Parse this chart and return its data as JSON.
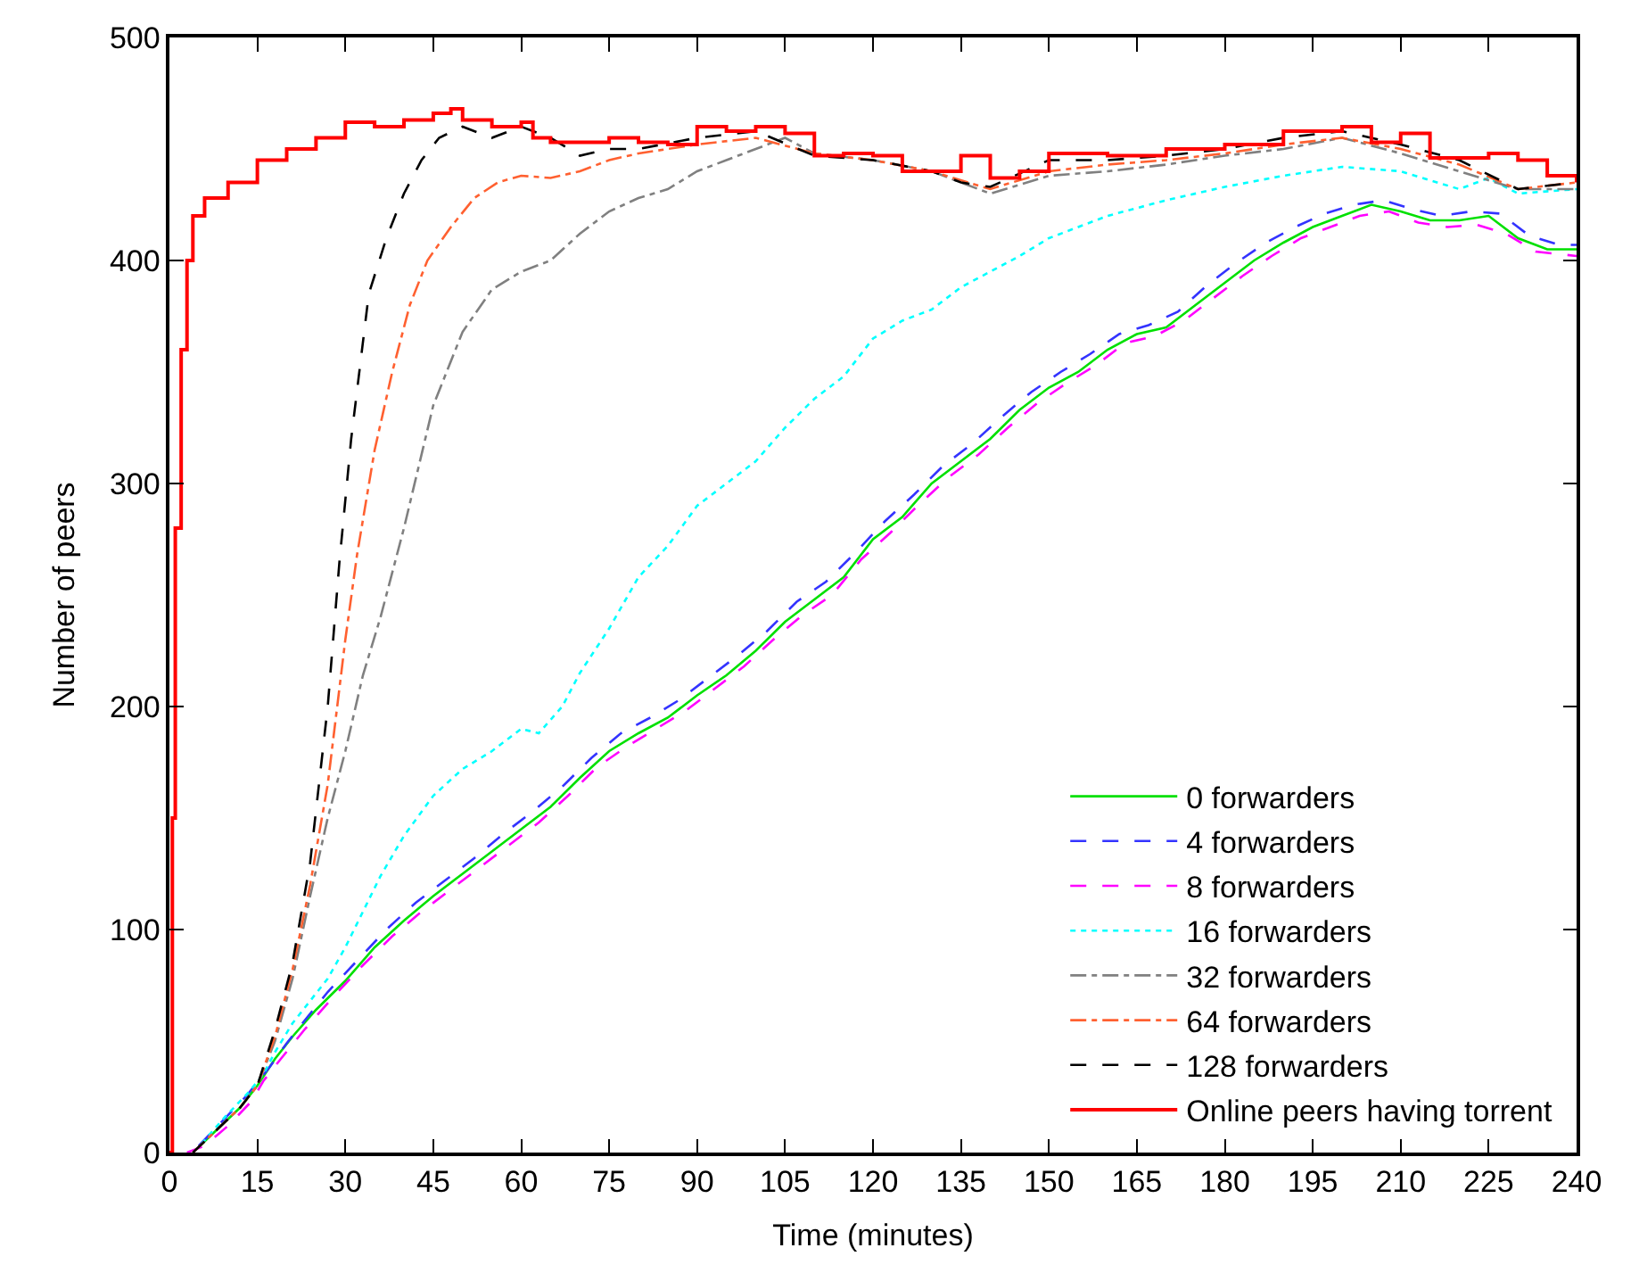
{
  "chart_data": {
    "type": "line",
    "xlabel": "Time (minutes)",
    "ylabel": "Number of peers",
    "xlim": [
      0,
      240
    ],
    "xticks": [
      0,
      15,
      30,
      45,
      60,
      75,
      90,
      105,
      120,
      135,
      150,
      165,
      180,
      195,
      210,
      225,
      240
    ],
    "ylim": [
      0,
      500
    ],
    "yticks": [
      0,
      100,
      200,
      300,
      400,
      500
    ],
    "legend": "bottom right",
    "marker": "none",
    "series": [
      {
        "name": "0 forwarders",
        "color": "#00e000",
        "line_style": "solid",
        "x": [
          4,
          8,
          12,
          15,
          18,
          21,
          25,
          30,
          35,
          40,
          45,
          50,
          55,
          60,
          65,
          70,
          75,
          80,
          85,
          90,
          95,
          100,
          105,
          110,
          115,
          120,
          125,
          130,
          135,
          140,
          145,
          150,
          155,
          160,
          165,
          170,
          175,
          180,
          185,
          190,
          195,
          200,
          205,
          210,
          215,
          220,
          225,
          230,
          235,
          240
        ],
        "values": [
          0,
          10,
          20,
          30,
          42,
          52,
          64,
          77,
          92,
          104,
          115,
          125,
          135,
          145,
          155,
          168,
          180,
          188,
          195,
          205,
          214,
          225,
          238,
          248,
          258,
          275,
          285,
          300,
          310,
          320,
          333,
          343,
          350,
          360,
          367,
          370,
          380,
          390,
          400,
          408,
          415,
          420,
          425,
          422,
          418,
          418,
          420,
          410,
          405,
          405
        ]
      },
      {
        "name": "4 forwarders",
        "color": "#3333ff",
        "line_style": "dashed",
        "x": [
          5,
          9,
          13,
          17,
          20,
          23,
          27,
          32,
          37,
          42,
          47,
          52,
          57,
          62,
          67,
          72,
          77,
          82,
          87,
          92,
          97,
          102,
          107,
          112,
          117,
          122,
          127,
          132,
          137,
          142,
          147,
          152,
          157,
          162,
          167,
          172,
          177,
          182,
          187,
          192,
          197,
          202,
          207,
          212,
          217,
          222,
          227,
          232,
          237,
          240
        ],
        "values": [
          3,
          14,
          25,
          38,
          49,
          59,
          72,
          86,
          100,
          112,
          122,
          132,
          143,
          153,
          164,
          177,
          188,
          195,
          203,
          213,
          223,
          234,
          247,
          256,
          269,
          283,
          295,
          308,
          318,
          330,
          341,
          350,
          358,
          367,
          371,
          377,
          389,
          399,
          408,
          415,
          421,
          425,
          427,
          423,
          420,
          422,
          421,
          411,
          407,
          407
        ]
      },
      {
        "name": "8 forwarders",
        "color": "#ff00ff",
        "line_style": "dashed",
        "x": [
          3,
          6,
          10,
          14,
          16,
          19,
          23,
          28,
          33,
          38,
          43,
          48,
          53,
          58,
          63,
          68,
          73,
          78,
          83,
          88,
          93,
          98,
          103,
          108,
          113,
          118,
          123,
          128,
          133,
          138,
          143,
          148,
          153,
          158,
          163,
          168,
          173,
          178,
          183,
          188,
          193,
          198,
          203,
          208,
          213,
          218,
          223,
          228,
          233,
          240
        ],
        "values": [
          0,
          3,
          12,
          23,
          32,
          42,
          55,
          70,
          84,
          97,
          108,
          118,
          128,
          138,
          148,
          160,
          173,
          182,
          190,
          198,
          208,
          218,
          230,
          241,
          250,
          266,
          278,
          291,
          303,
          313,
          325,
          336,
          345,
          353,
          363,
          366,
          373,
          383,
          393,
          402,
          410,
          415,
          420,
          422,
          417,
          415,
          416,
          412,
          404,
          402
        ]
      },
      {
        "name": "16 forwarders",
        "color": "#00ffff",
        "line_style": "dotted",
        "x": [
          5.5,
          9.5,
          13.5,
          16,
          18,
          21,
          24,
          27,
          30,
          33,
          36,
          40,
          45,
          50,
          55,
          60,
          63,
          67,
          70,
          75,
          80,
          85,
          90,
          95,
          100,
          105,
          110,
          115,
          120,
          125,
          130,
          135,
          140,
          145,
          150,
          155,
          160,
          170,
          180,
          190,
          200,
          210,
          220,
          225,
          230,
          240
        ],
        "values": [
          4,
          16,
          27,
          35,
          45,
          58,
          68,
          78,
          92,
          108,
          124,
          142,
          160,
          172,
          180,
          190,
          188,
          200,
          215,
          235,
          258,
          272,
          290,
          300,
          310,
          325,
          338,
          348,
          365,
          373,
          378,
          388,
          395,
          402,
          410,
          415,
          420,
          427,
          433,
          438,
          442,
          440,
          432,
          437,
          430,
          432
        ]
      },
      {
        "name": "32 forwarders",
        "color": "#808080",
        "line_style": "dashdot",
        "x": [
          4,
          8,
          12,
          15,
          18,
          21,
          24,
          27,
          30,
          33,
          36,
          40,
          45,
          50,
          55,
          60,
          65,
          70,
          75,
          80,
          85,
          90,
          95,
          100,
          105,
          110,
          120,
          130,
          140,
          150,
          160,
          170,
          180,
          190,
          200,
          210,
          220,
          230,
          240
        ],
        "values": [
          0,
          10,
          20,
          30,
          50,
          78,
          115,
          150,
          180,
          214,
          240,
          280,
          335,
          368,
          387,
          395,
          400,
          412,
          422,
          428,
          432,
          440,
          445,
          450,
          455,
          448,
          445,
          440,
          430,
          438,
          440,
          443,
          447,
          450,
          455,
          448,
          440,
          432,
          432
        ]
      },
      {
        "name": "64 forwarders",
        "color": "#ff6030",
        "line_style": "dashdot",
        "x": [
          4,
          8,
          12,
          15,
          18,
          21,
          24,
          27,
          30,
          32,
          35,
          38,
          41,
          44,
          48,
          52,
          56,
          60,
          65,
          70,
          75,
          80,
          90,
          100,
          110,
          120,
          130,
          140,
          150,
          160,
          170,
          180,
          190,
          200,
          210,
          220,
          230,
          240
        ],
        "values": [
          0,
          10,
          20,
          30,
          52,
          82,
          120,
          165,
          230,
          268,
          315,
          350,
          380,
          400,
          415,
          428,
          435,
          438,
          437,
          440,
          445,
          448,
          452,
          455,
          448,
          445,
          440,
          432,
          440,
          443,
          445,
          448,
          452,
          455,
          450,
          443,
          432,
          435
        ]
      },
      {
        "name": "128 forwarders",
        "color": "#000000",
        "line_style": "dashed",
        "x": [
          4,
          8,
          12,
          15,
          18,
          21,
          24,
          27,
          29,
          31,
          34,
          37,
          40,
          43,
          46,
          50,
          55,
          60,
          65,
          70,
          75,
          80,
          90,
          100,
          110,
          120,
          130,
          135,
          140,
          150,
          160,
          170,
          180,
          190,
          200,
          210,
          220,
          230,
          240
        ],
        "values": [
          0,
          10,
          20,
          30,
          55,
          85,
          130,
          200,
          265,
          320,
          385,
          410,
          430,
          445,
          455,
          460,
          455,
          460,
          455,
          447,
          450,
          450,
          455,
          458,
          447,
          445,
          440,
          435,
          433,
          445,
          445,
          447,
          450,
          455,
          458,
          452,
          445,
          432,
          435
        ]
      },
      {
        "name": "Online peers having torrent",
        "color": "#ff0000",
        "line_style": "solid",
        "type": "step",
        "x": [
          0,
          0.5,
          1,
          2,
          3,
          4,
          6,
          10,
          15,
          20,
          25,
          30,
          35,
          40,
          45,
          48,
          50,
          55,
          60,
          62,
          65,
          75,
          80,
          85,
          90,
          95,
          100,
          105,
          110,
          115,
          120,
          125,
          135,
          140,
          145,
          150,
          160,
          170,
          180,
          190,
          200,
          205,
          210,
          215,
          225,
          230,
          235,
          240
        ],
        "values": [
          0,
          150,
          280,
          360,
          400,
          420,
          428,
          435,
          445,
          450,
          455,
          462,
          460,
          463,
          466,
          468,
          463,
          460,
          462,
          455,
          453,
          455,
          453,
          452,
          460,
          458,
          460,
          457,
          447,
          448,
          447,
          440,
          447,
          437,
          440,
          448,
          447,
          450,
          452,
          458,
          460,
          453,
          457,
          446,
          448,
          445,
          438,
          435
        ]
      }
    ]
  }
}
